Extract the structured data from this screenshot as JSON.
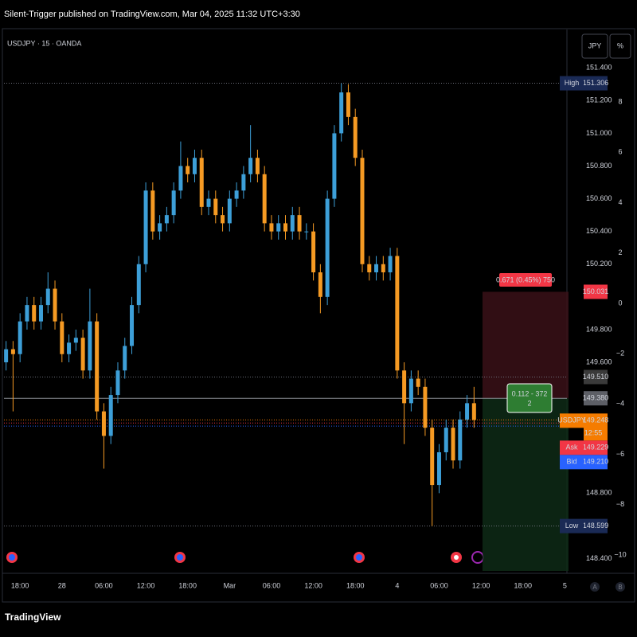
{
  "header": {
    "title": "Silent-Trigger published on TradingView.com, Mar 04, 2025 11:32 UTC+3:30"
  },
  "chart_data": {
    "type": "candlestick",
    "symbol": "USDJPY · 15 · OANDA",
    "up_color": "#3d9fd8",
    "down_color": "#f59a23",
    "categories": [
      null,
      null,
      null,
      null,
      null,
      null,
      null,
      null,
      null,
      null,
      null,
      null,
      null,
      null,
      null,
      null,
      null,
      null,
      null,
      null,
      null,
      null,
      null,
      null,
      null,
      null,
      null,
      null,
      null,
      null,
      null,
      null,
      null,
      null,
      null,
      null,
      null,
      null,
      null,
      null,
      null,
      null,
      null,
      null,
      null,
      null,
      null,
      null,
      null,
      null,
      null,
      null,
      null,
      null,
      null,
      null,
      null,
      null,
      null,
      null,
      null,
      null,
      null,
      null,
      null,
      null,
      null,
      null
    ],
    "open": [
      149.6,
      149.68,
      149.65,
      149.85,
      149.95,
      149.85,
      149.95,
      150.05,
      149.85,
      149.65,
      149.72,
      149.75,
      149.55,
      149.85,
      149.3,
      149.15,
      149.4,
      149.55,
      149.7,
      149.95,
      150.2,
      150.65,
      150.4,
      150.45,
      150.5,
      150.65,
      150.8,
      150.75,
      150.85,
      150.55,
      150.6,
      150.5,
      150.45,
      150.6,
      150.65,
      150.75,
      150.85,
      150.75,
      150.45,
      150.4,
      150.45,
      150.4,
      150.5,
      150.4,
      150.4,
      150.15,
      150.0,
      150.6,
      151.0,
      151.25,
      151.1,
      150.85,
      150.2,
      150.15,
      150.2,
      150.15,
      150.25,
      149.55,
      149.35,
      149.5,
      149.45,
      149.2,
      148.85,
      149.05,
      149.2,
      149.0,
      149.25,
      149.35
    ],
    "high": [
      149.73,
      149.73,
      149.9,
      150.0,
      150.0,
      150.0,
      150.15,
      150.1,
      149.9,
      149.77,
      149.8,
      149.8,
      150.05,
      149.9,
      149.35,
      149.45,
      149.6,
      149.75,
      150.0,
      150.25,
      150.7,
      150.7,
      150.5,
      150.55,
      150.7,
      150.95,
      150.85,
      150.9,
      150.9,
      150.65,
      150.65,
      150.55,
      150.65,
      150.7,
      150.8,
      151.05,
      150.9,
      150.8,
      150.5,
      150.5,
      150.5,
      150.55,
      150.55,
      150.45,
      150.45,
      150.2,
      150.65,
      151.05,
      151.306,
      151.3,
      151.15,
      150.9,
      150.25,
      150.25,
      150.25,
      150.3,
      150.3,
      149.6,
      149.55,
      149.55,
      149.5,
      149.25,
      149.1,
      149.25,
      149.25,
      149.3,
      149.4,
      149.45
    ],
    "low": [
      149.55,
      149.3,
      149.6,
      149.8,
      149.8,
      149.8,
      149.9,
      149.8,
      149.6,
      149.6,
      149.67,
      149.5,
      149.5,
      149.25,
      148.95,
      149.1,
      149.35,
      149.5,
      149.65,
      149.9,
      150.15,
      150.35,
      150.35,
      150.4,
      150.45,
      150.6,
      150.7,
      150.7,
      150.5,
      150.5,
      150.45,
      150.4,
      150.4,
      150.55,
      150.6,
      150.7,
      150.7,
      150.4,
      150.35,
      150.35,
      150.35,
      150.35,
      150.35,
      150.35,
      150.1,
      149.9,
      149.95,
      150.55,
      150.95,
      151.05,
      150.8,
      150.15,
      150.1,
      150.1,
      150.1,
      150.1,
      149.5,
      149.1,
      149.3,
      149.4,
      149.15,
      148.599,
      148.8,
      149.0,
      148.95,
      148.95,
      149.2,
      149.2
    ],
    "close": [
      149.68,
      149.65,
      149.85,
      149.95,
      149.85,
      149.95,
      150.05,
      149.85,
      149.65,
      149.72,
      149.75,
      149.55,
      149.85,
      149.3,
      149.15,
      149.4,
      149.55,
      149.7,
      149.95,
      150.2,
      150.65,
      150.4,
      150.45,
      150.5,
      150.65,
      150.8,
      150.75,
      150.85,
      150.55,
      150.6,
      150.5,
      150.45,
      150.6,
      150.65,
      150.75,
      150.85,
      150.75,
      150.45,
      150.4,
      150.45,
      150.4,
      150.5,
      150.4,
      150.4,
      150.15,
      150.0,
      150.6,
      151.0,
      151.25,
      151.1,
      150.85,
      150.2,
      150.15,
      150.2,
      150.15,
      150.25,
      149.55,
      149.35,
      149.5,
      149.45,
      149.2,
      148.85,
      149.05,
      149.2,
      149.0,
      149.25,
      149.35,
      149.248
    ],
    "xlim": [
      -0.3,
      80.3
    ],
    "xticks": [
      {
        "value": 2,
        "label": "18:00"
      },
      {
        "value": 8,
        "label": "28"
      },
      {
        "value": 14,
        "label": "06:00"
      },
      {
        "value": 20,
        "label": "12:00"
      },
      {
        "value": 26,
        "label": "18:00"
      },
      {
        "value": 32,
        "label": "Mar"
      },
      {
        "value": 38,
        "label": "06:00"
      },
      {
        "value": 44,
        "label": "12:00"
      },
      {
        "value": 50,
        "label": "18:00"
      },
      {
        "value": 56,
        "label": "4"
      },
      {
        "value": 62,
        "label": "06:00"
      },
      {
        "value": 68,
        "label": "12:00"
      },
      {
        "value": 74,
        "label": "18:00"
      },
      {
        "value": 80,
        "label": "5"
      }
    ],
    "ylim": [
      148.31,
      151.63
    ],
    "yticks": [
      {
        "value": 151.4,
        "label": "151.400"
      },
      {
        "value": 151.2,
        "label": "151.200"
      },
      {
        "value": 151.0,
        "label": "151.000"
      },
      {
        "value": 150.8,
        "label": "150.800"
      },
      {
        "value": 150.6,
        "label": "150.600"
      },
      {
        "value": 150.4,
        "label": "150.400"
      },
      {
        "value": 150.2,
        "label": "150.200"
      },
      {
        "value": 149.8,
        "label": "149.800"
      },
      {
        "value": 149.6,
        "label": "149.600"
      },
      {
        "value": 148.8,
        "label": "148.800"
      },
      {
        "value": 148.4,
        "label": "148.400"
      }
    ],
    "y2lim": [
      -10.73,
      10.85
    ],
    "y2ticks": [
      8,
      6,
      4,
      2,
      0,
      {
        "value": -2,
        "label": "−2"
      },
      {
        "value": -4,
        "label": "−4"
      },
      {
        "value": -6,
        "label": "−6"
      },
      {
        "value": -8,
        "label": "−8"
      },
      {
        "value": -10,
        "label": "−10"
      }
    ],
    "badges": [
      {
        "name": "High",
        "value": 151.306,
        "label": "151.306",
        "color": "#1a2a55",
        "line_color": "#6b6f7a"
      },
      {
        "value": 150.031,
        "label": "150.031",
        "color": "#f23645"
      },
      {
        "value": 149.51,
        "label": "149.510",
        "color": "#3a3a3a",
        "line_color": "#6b6f7a"
      },
      {
        "value": 149.38,
        "label": "149.380",
        "color": "#5d5f66",
        "line_color": "#8a8d94"
      },
      {
        "name": "USDJPY",
        "value": 149.248,
        "label": "149.248",
        "countdown": "12:55",
        "color": "#f57c00",
        "line_color": "#f57c00"
      },
      {
        "name": "Ask",
        "value": 149.229,
        "label": "149.229",
        "color": "#f23645",
        "line_color": "#f23645"
      },
      {
        "name": "Bid",
        "value": 149.21,
        "label": "149.210",
        "color": "#2962ff",
        "line_color": "#2962ff"
      },
      {
        "name": "Low",
        "value": 148.599,
        "label": "148.599",
        "color": "#1a2a55",
        "line_color": "#6b6f7a"
      }
    ],
    "position": {
      "target_text": "0.671 (0.45%) 750",
      "entry_text": [
        "0.112 - 372",
        "2"
      ]
    }
  },
  "controls": {
    "currency": "JPY",
    "percent": "%",
    "auto": "A",
    "buttons": "B"
  },
  "footer": {
    "brand": "TradingView"
  }
}
